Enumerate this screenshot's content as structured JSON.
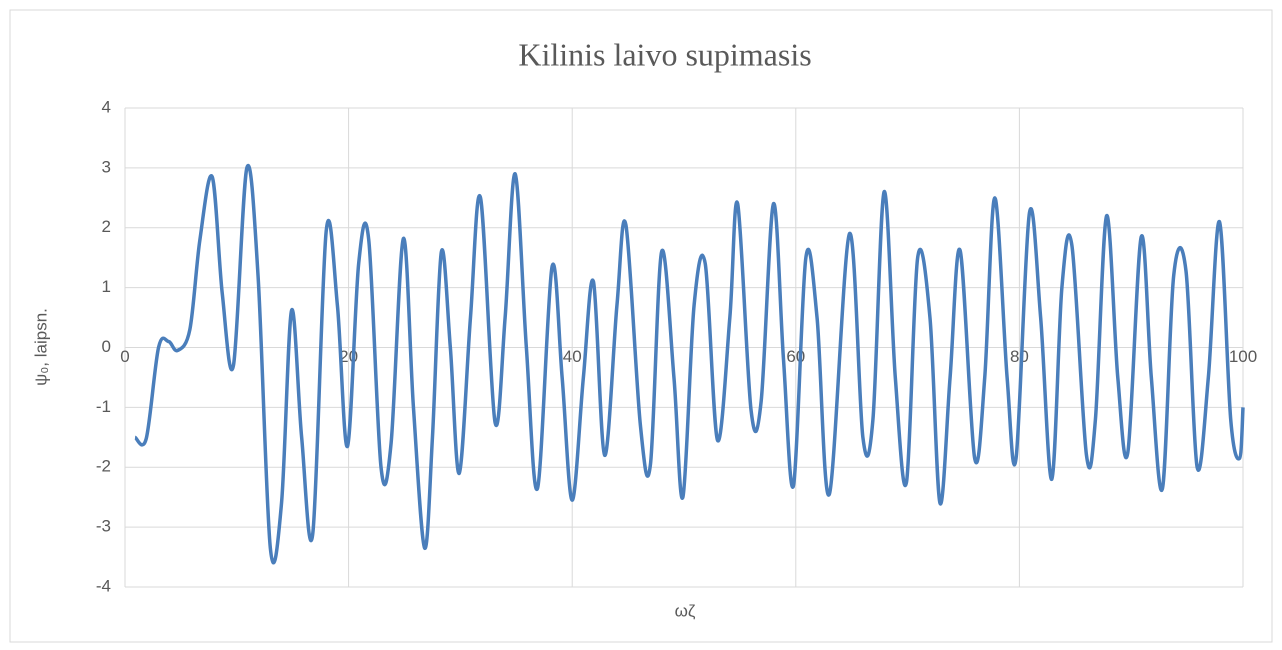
{
  "chart_data": {
    "type": "line",
    "title": "Kilinis laivo supimasis",
    "x_label": "ωζ",
    "y_label": "ψ₀, laipsn.",
    "xlim": [
      0,
      100
    ],
    "xticks": [
      0,
      20,
      40,
      60,
      80,
      100
    ],
    "ylim": [
      -4,
      4
    ],
    "yticks": [
      -4,
      -3,
      -2,
      -1,
      0,
      1,
      2,
      3,
      4
    ],
    "grid": true,
    "x": [
      0.9,
      1.9,
      3.0,
      3.9,
      4.7,
      5.8,
      6.7,
      7.8,
      8.7,
      9.7,
      10.9,
      11.9,
      13.0,
      14.0,
      14.9,
      15.8,
      16.8,
      18.0,
      19.0,
      19.9,
      20.9,
      21.8,
      22.9,
      23.8,
      24.9,
      25.8,
      26.8,
      27.5,
      28.3,
      29.1,
      29.9,
      30.9,
      31.8,
      33.1,
      34.0,
      34.9,
      35.9,
      36.9,
      38.2,
      39.1,
      40.0,
      41.0,
      41.9,
      42.9,
      44.0,
      44.8,
      46.1,
      47.0,
      48.0,
      49.1,
      49.9,
      50.9,
      51.9,
      53.0,
      54.1,
      54.8,
      56.0,
      56.9,
      58.0,
      58.9,
      59.8,
      60.9,
      61.9,
      63.0,
      64.8,
      66.0,
      66.9,
      67.9,
      68.9,
      69.9,
      70.9,
      72.0,
      72.9,
      73.8,
      74.7,
      76.0,
      76.9,
      77.8,
      78.9,
      79.7,
      80.9,
      81.9,
      82.9,
      83.8,
      84.7,
      86.0,
      86.8,
      87.8,
      88.8,
      89.7,
      90.9,
      91.8,
      92.8,
      93.8,
      94.9,
      95.9,
      96.9,
      97.9,
      98.9,
      99.7,
      100.0
    ],
    "series": [
      {
        "name": "ψ₀",
        "color": "#4a7ebb",
        "values": [
          -1.5,
          -1.52,
          0.0,
          0.1,
          -0.05,
          0.3,
          1.8,
          2.85,
          0.9,
          -0.3,
          3.0,
          1.2,
          -3.35,
          -2.6,
          0.62,
          -1.5,
          -3.1,
          1.95,
          0.7,
          -1.65,
          1.4,
          1.8,
          -2.0,
          -1.6,
          1.82,
          -1.0,
          -3.35,
          -1.5,
          1.6,
          0.0,
          -2.1,
          0.5,
          2.5,
          -1.25,
          0.5,
          2.9,
          0.0,
          -2.35,
          1.35,
          -0.5,
          -2.55,
          -0.5,
          1.1,
          -1.8,
          0.7,
          2.05,
          -1.3,
          -1.95,
          1.6,
          -0.5,
          -2.5,
          0.7,
          1.4,
          -1.55,
          0.5,
          2.4,
          -1.05,
          -0.9,
          2.4,
          -0.2,
          -2.3,
          1.5,
          0.5,
          -2.45,
          1.9,
          -1.5,
          -1.2,
          2.6,
          -0.5,
          -2.25,
          1.5,
          0.5,
          -2.6,
          -0.5,
          1.62,
          -1.85,
          -0.5,
          2.5,
          -0.5,
          -1.85,
          2.25,
          0.5,
          -2.2,
          1.0,
          1.7,
          -1.8,
          -1.2,
          2.2,
          -0.5,
          -1.75,
          1.85,
          -0.5,
          -2.35,
          1.2,
          1.28,
          -2.0,
          -0.5,
          2.1,
          -1.2,
          -1.85,
          -1.0
        ]
      }
    ]
  }
}
